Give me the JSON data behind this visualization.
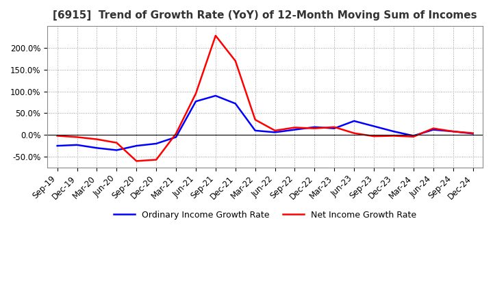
{
  "title": "[6915]  Trend of Growth Rate (YoY) of 12-Month Moving Sum of Incomes",
  "x_labels": [
    "Sep-19",
    "Dec-19",
    "Mar-20",
    "Jun-20",
    "Sep-20",
    "Dec-20",
    "Mar-21",
    "Jun-21",
    "Sep-21",
    "Dec-21",
    "Mar-22",
    "Jun-22",
    "Sep-22",
    "Dec-22",
    "Mar-23",
    "Jun-23",
    "Sep-23",
    "Dec-23",
    "Mar-24",
    "Jun-24",
    "Sep-24",
    "Dec-24"
  ],
  "ordinary_income": [
    -25,
    -23,
    -30,
    -35,
    -25,
    -20,
    -5,
    77,
    90,
    72,
    10,
    6,
    12,
    18,
    15,
    32,
    20,
    8,
    -2,
    12,
    8,
    3
  ],
  "net_income": [
    -2,
    -5,
    -10,
    -18,
    -60,
    -57,
    3,
    95,
    228,
    170,
    35,
    10,
    17,
    15,
    18,
    4,
    -3,
    -2,
    -4,
    15,
    8,
    4
  ],
  "ordinary_color": "#0000ff",
  "net_color": "#ff0000",
  "ylim_min": -75,
  "ylim_max": 250,
  "yticks": [
    -50.0,
    0.0,
    50.0,
    100.0,
    150.0,
    200.0
  ],
  "background_color": "#ffffff",
  "grid_color": "#999999",
  "legend_ordinary": "Ordinary Income Growth Rate",
  "legend_net": "Net Income Growth Rate",
  "title_fontsize": 11,
  "tick_fontsize": 8.5,
  "line_width": 1.8
}
